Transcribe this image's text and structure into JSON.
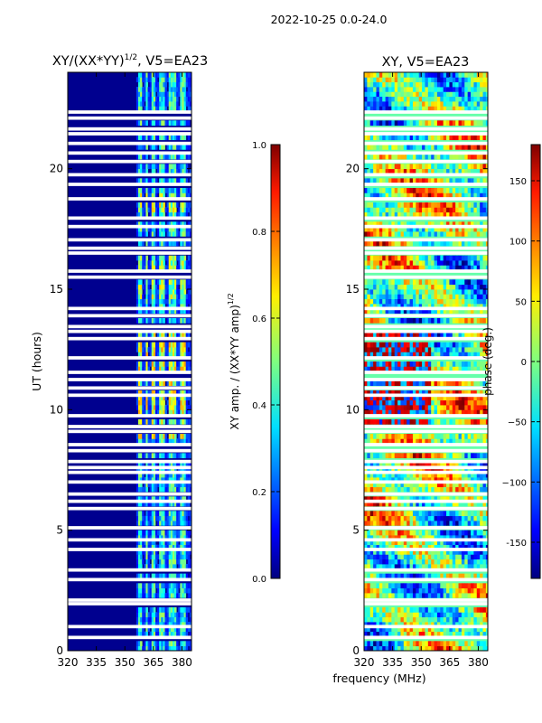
{
  "suptitle": "2022-10-25 0.0-24.0",
  "shared_xlabel": "frequency (MHz)",
  "chart_data": [
    {
      "type": "heatmap",
      "title": "XY/(XX*YY)",
      "title_power": "1/2",
      "title_suffix": ", V5=EA23",
      "ylabel": "UT (hours)",
      "xlim": [
        320,
        385
      ],
      "ylim": [
        0,
        24
      ],
      "xticks": [
        320,
        335,
        350,
        365,
        380
      ],
      "yticks": [
        0,
        5,
        10,
        15,
        20
      ],
      "bright_channels_mhz": [
        [
          357,
          359
        ],
        [
          361,
          362
        ],
        [
          364,
          366
        ],
        [
          368,
          371
        ],
        [
          373,
          377
        ],
        [
          379,
          382
        ]
      ],
      "flagged_hours": [
        0.55,
        1.0,
        1.95,
        2.1,
        2.95,
        3.35,
        4.2,
        4.6,
        5.1,
        5.9,
        6.2,
        6.5,
        7.0,
        7.4,
        7.6,
        7.85,
        8.3,
        8.55,
        9.1,
        9.3,
        9.75,
        10.6,
        10.9,
        11.25,
        11.55,
        12.15,
        12.95,
        13.25,
        13.45,
        13.9,
        14.2,
        15.5,
        15.75,
        16.5,
        16.7,
        17.05,
        17.6,
        17.95,
        18.75,
        19.35,
        19.75,
        20.3,
        20.65,
        21.05,
        21.45,
        21.65,
        22.1,
        22.35
      ],
      "colorbar": {
        "label": "XY amp. / (XX*YY amp)",
        "label_power": "1/2",
        "range": [
          0.0,
          1.0
        ],
        "ticks": [
          "0.0",
          "0.2",
          "0.4",
          "0.6",
          "0.8",
          "1.0"
        ]
      }
    },
    {
      "type": "heatmap",
      "title": "XY, V5=EA23",
      "xlim": [
        320,
        385
      ],
      "ylim": [
        0,
        24
      ],
      "xticks": [
        320,
        335,
        350,
        365,
        380
      ],
      "yticks": [
        0,
        5,
        10,
        15,
        20
      ],
      "flagged_hours": [
        0.55,
        1.0,
        1.95,
        2.1,
        2.95,
        3.35,
        4.2,
        4.6,
        5.1,
        5.9,
        6.2,
        6.5,
        7.0,
        7.4,
        7.6,
        7.85,
        8.3,
        8.55,
        9.1,
        9.3,
        9.75,
        10.6,
        10.9,
        11.25,
        11.55,
        12.15,
        12.95,
        13.25,
        13.45,
        13.9,
        14.2,
        15.5,
        15.75,
        16.5,
        16.7,
        17.05,
        17.6,
        17.95,
        18.75,
        19.35,
        19.75,
        20.3,
        20.65,
        21.05,
        21.45,
        21.65,
        22.1,
        22.35
      ],
      "colorbar": {
        "label": "phase (deg.)",
        "range": [
          -180,
          180
        ],
        "ticks": [
          "-150",
          "−100",
          "−50",
          "0",
          "50",
          "100",
          "150"
        ]
      }
    }
  ]
}
